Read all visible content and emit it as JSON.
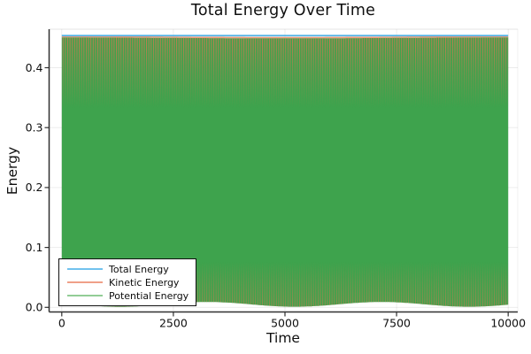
{
  "figure": {
    "background": "#FFFFFF"
  },
  "chart_data": {
    "type": "line",
    "title": "Total Energy Over Time",
    "xlabel": "Time",
    "ylabel": "Energy",
    "xlim": [
      0,
      10000
    ],
    "ylim": [
      0.0,
      0.472
    ],
    "xticks": [
      0,
      2500,
      5000,
      7500,
      10000
    ],
    "xtick_labels": [
      "0",
      "2500",
      "5000",
      "7500",
      "10000"
    ],
    "yticks": [
      0.0,
      0.1,
      0.2,
      0.3,
      0.4
    ],
    "ytick_labels": [
      "0.0",
      "0.1",
      "0.2",
      "0.3",
      "0.4"
    ],
    "grid": true,
    "legend_position": "bottom-left",
    "series": [
      {
        "name": "Total Energy",
        "color": "#4FB2E6",
        "legend_color": "#72C2EE",
        "style": "constant",
        "value": 0.4535
      },
      {
        "name": "Kinetic Energy",
        "color": "#E26E47",
        "legend_color": "#F0A088",
        "style": "high-frequency oscillation (aliased vertical stripes)",
        "min": 0.0,
        "max": 0.4535
      },
      {
        "name": "Potential Energy",
        "color": "#3EA34D",
        "legend_color": "#92CD96",
        "style": "high-frequency oscillation, antiphase with kinetic (dominant fill)",
        "min": 0.0,
        "max": 0.4535
      }
    ],
    "colors": {
      "stripe_orange": "#C87B4F",
      "top_edge_salmon": "#EC9977",
      "grid": "rgba(0,0,0,0.08)",
      "spine": "#303030",
      "text": "#0f0f0f"
    }
  }
}
